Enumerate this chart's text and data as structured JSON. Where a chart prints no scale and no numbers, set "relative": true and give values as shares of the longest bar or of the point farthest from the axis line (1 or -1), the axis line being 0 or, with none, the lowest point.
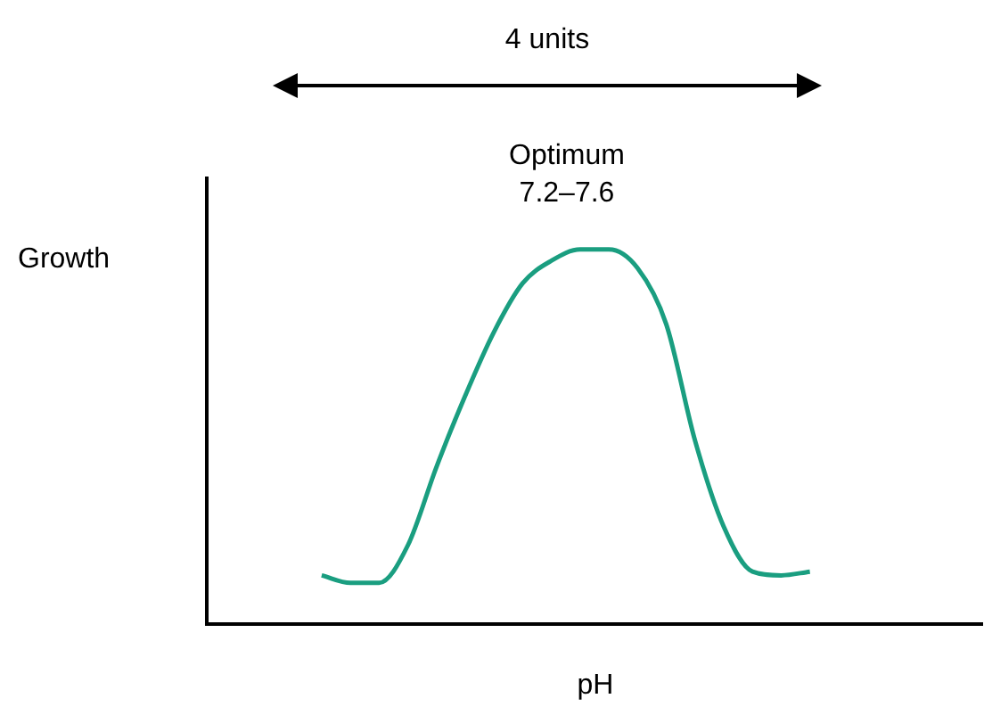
{
  "chart_data": {
    "type": "line",
    "relative": true,
    "xlabel": "pH",
    "ylabel": "Growth",
    "annotations": [
      "4 units",
      "Optimum",
      "7.2–7.6"
    ],
    "categories": [
      null,
      null,
      null,
      null,
      null,
      null,
      null,
      null,
      null,
      null,
      null,
      null,
      null,
      null,
      null,
      null,
      null,
      null,
      null,
      null,
      null,
      null,
      null,
      null,
      null,
      null,
      null,
      null
    ],
    "series": [
      {
        "color": "#1a9e80",
        "values": [
          null,
          null,
          null,
          null,
          0.13,
          0.11,
          0.11,
          0.21,
          0.42,
          0.61,
          0.78,
          0.91,
          0.97,
          1.0,
          1.0,
          0.95,
          0.8,
          0.49,
          0.26,
          0.14,
          0.13,
          0.14,
          null,
          null,
          null,
          null,
          null,
          null
        ]
      }
    ],
    "grid": false,
    "legend": false,
    "marker": "none"
  }
}
